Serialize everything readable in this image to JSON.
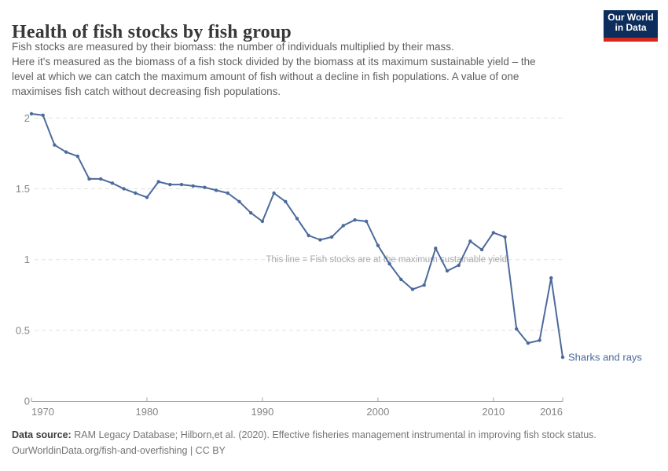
{
  "header": {
    "title": "Health of fish stocks by fish group",
    "subtitle_lines": [
      "Fish stocks are measured by their biomass: the number of individuals multiplied by their mass.",
      "Here it's measured as the biomass of a fish stock divided by the biomass at its maximum sustainable yield – the",
      "level at which we can catch the maximum amount of fish without a decline in fish populations. A value of one",
      "maximises fish catch without decreasing fish populations."
    ],
    "logo": {
      "line1": "Our World",
      "line2": "in Data"
    }
  },
  "chart_data": {
    "type": "line",
    "title": "Health of fish stocks by fish group",
    "xlabel": "",
    "ylabel": "",
    "xlim": [
      1970,
      2016
    ],
    "ylim": [
      0,
      2.05
    ],
    "grid": "horizontal-dashed",
    "xticks": [
      1970,
      1980,
      1990,
      2000,
      2010,
      2016
    ],
    "yticks": [
      0,
      0.5,
      1,
      1.5,
      2
    ],
    "annotation": "This line = Fish stocks are at the maximum sustainable yield",
    "annotation_value": 1,
    "series": [
      {
        "name": "Sharks and rays",
        "color": "#4c6a9c",
        "x": [
          1970,
          1971,
          1972,
          1973,
          1974,
          1975,
          1976,
          1977,
          1978,
          1979,
          1980,
          1981,
          1982,
          1983,
          1984,
          1985,
          1986,
          1987,
          1988,
          1989,
          1990,
          1991,
          1992,
          1993,
          1994,
          1995,
          1996,
          1997,
          1998,
          1999,
          2000,
          2001,
          2002,
          2003,
          2004,
          2005,
          2006,
          2007,
          2008,
          2009,
          2010,
          2011,
          2012,
          2013,
          2014,
          2015,
          2016
        ],
        "values": [
          2.03,
          2.02,
          1.81,
          1.76,
          1.73,
          1.57,
          1.57,
          1.54,
          1.5,
          1.47,
          1.44,
          1.55,
          1.53,
          1.53,
          1.52,
          1.51,
          1.49,
          1.47,
          1.41,
          1.33,
          1.27,
          1.47,
          1.41,
          1.29,
          1.17,
          1.14,
          1.16,
          1.24,
          1.28,
          1.27,
          1.1,
          0.97,
          0.86,
          0.79,
          0.82,
          1.08,
          0.92,
          0.96,
          1.13,
          1.07,
          1.19,
          1.16,
          0.51,
          0.41,
          0.43,
          0.87,
          0.31
        ]
      }
    ],
    "colors": {
      "line": "#4c6a9c",
      "grid": "#e0e0e0",
      "axis": "#a5a5a5",
      "tick_label": "#858585",
      "annotation": "#a9a9a9"
    }
  },
  "footer": {
    "datasource_label": "Data source:",
    "datasource_text": " RAM Legacy Database; Hilborn,et al. (2020). Effective fisheries management instrumental in improving fish stock status.",
    "license": "OurWorldinData.org/fish-and-overfishing | CC BY"
  }
}
